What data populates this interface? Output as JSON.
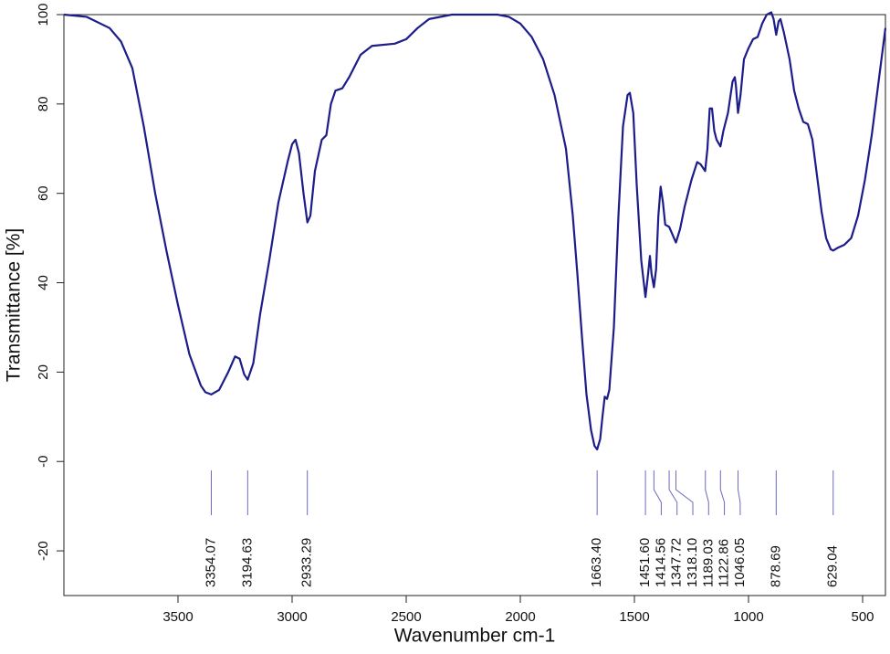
{
  "chart_data": {
    "type": "line",
    "xlabel": "Wavenumber cm-1",
    "ylabel": "Transmittance [%]",
    "xlim": [
      4000,
      400
    ],
    "ylim": [
      -30,
      100
    ],
    "xticks": [
      3500,
      3000,
      2500,
      2000,
      1500,
      1000,
      500
    ],
    "yticks": [
      100,
      80,
      60,
      40,
      20,
      {
        "value": 0,
        "label": "-0"
      },
      -20
    ],
    "grid": false,
    "color": "#1c1c8a",
    "peak_color": "#6a6abf",
    "x": [
      4000,
      3900,
      3800,
      3750,
      3700,
      3650,
      3600,
      3550,
      3500,
      3450,
      3400,
      3380,
      3354,
      3320,
      3280,
      3250,
      3230,
      3210,
      3194.6,
      3170,
      3140,
      3100,
      3060,
      3020,
      3000,
      2985,
      2970,
      2950,
      2933,
      2920,
      2900,
      2870,
      2850,
      2830,
      2810,
      2780,
      2750,
      2700,
      2650,
      2550,
      2500,
      2450,
      2400,
      2300,
      2100,
      2050,
      2000,
      1950,
      1900,
      1850,
      1800,
      1770,
      1750,
      1730,
      1710,
      1690,
      1675,
      1663.4,
      1650,
      1640,
      1630,
      1620,
      1610,
      1590,
      1570,
      1550,
      1530,
      1520,
      1505,
      1490,
      1470,
      1451.6,
      1440,
      1432,
      1425,
      1414.6,
      1405,
      1395,
      1385,
      1375,
      1365,
      1347.7,
      1335,
      1318,
      1300,
      1280,
      1250,
      1225,
      1210,
      1190,
      1180,
      1170,
      1160,
      1150,
      1140,
      1122.9,
      1110,
      1090,
      1070,
      1060,
      1055,
      1046,
      1035,
      1020,
      1000,
      980,
      960,
      940,
      920,
      900,
      890,
      878.7,
      868,
      860,
      845,
      820,
      800,
      780,
      760,
      740,
      720,
      700,
      680,
      660,
      640,
      629,
      610,
      580,
      550,
      520,
      490,
      460,
      430,
      400
    ],
    "values": [
      100,
      99.5,
      97,
      94,
      88,
      75,
      60,
      47,
      35,
      24,
      17,
      15.5,
      15,
      16,
      20,
      23.5,
      23,
      19.5,
      18.3,
      22,
      33,
      45,
      58,
      67,
      71,
      72,
      69,
      60,
      53.5,
      55,
      65,
      72,
      73,
      80,
      83,
      83.5,
      86,
      91,
      93,
      93.5,
      94.5,
      97,
      99,
      100,
      100,
      99.5,
      98,
      95,
      90,
      82,
      70,
      55,
      42,
      28,
      15,
      7,
      3.5,
      2.7,
      5,
      10,
      14.5,
      14,
      16,
      30,
      55,
      75,
      82,
      82.5,
      78,
      62,
      45,
      36.8,
      42,
      46,
      42,
      39,
      43,
      55,
      61.5,
      58,
      53,
      52.5,
      51,
      49,
      52,
      57,
      63,
      67,
      66.5,
      65,
      70,
      79,
      79,
      74,
      72,
      70.5,
      74,
      78,
      85,
      86,
      84,
      78,
      82,
      90,
      92.5,
      94.5,
      95,
      98,
      100,
      100.5,
      99,
      95.5,
      98.5,
      99,
      96,
      90,
      83,
      79,
      76,
      75.5,
      72,
      64,
      56,
      50,
      47.5,
      47.2,
      47.8,
      48.5,
      50,
      55,
      63,
      73,
      85,
      97
    ],
    "peaks": {
      "values": [
        3354.07,
        3194.63,
        2933.29,
        1663.4,
        1451.6,
        1414.56,
        1347.72,
        1318.1,
        1189.03,
        1122.86,
        1046.05,
        878.69,
        629.04
      ],
      "value_labels": [
        "3354.07",
        "3194.63",
        "2933.29",
        "1663.40",
        "1451.60",
        "1414.56",
        "1347.72",
        "1318.10",
        "1189.03",
        "1122.86",
        "1046.05",
        "878.69",
        "629.04"
      ]
    }
  }
}
